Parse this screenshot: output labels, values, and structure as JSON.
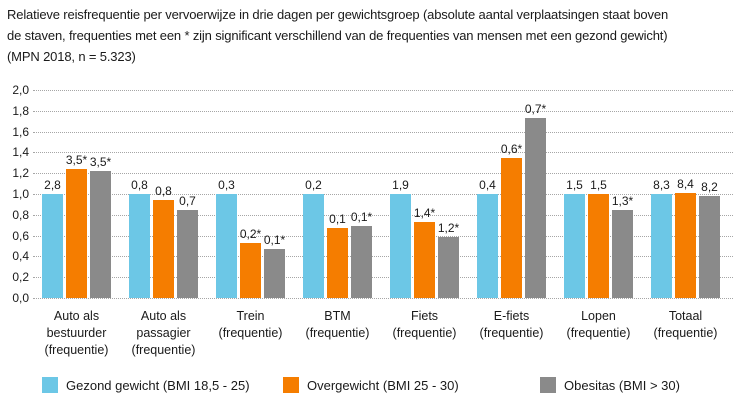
{
  "title_lines": [
    "Relatieve reisfrequentie per vervoerwijze in drie dagen per gewichtsgroep (absolute aantal verplaatsingen staat boven",
    "de staven, frequenties met een * zijn significant verschillend van de frequenties van mensen met een gezond gewicht)",
    "(MPN 2018, n = 5.323)"
  ],
  "legend": [
    {
      "label": "Gezond gewicht (BMI 18,5 - 25)",
      "color": "#6CC7E6"
    },
    {
      "label": "Overgewicht (BMI 25 - 30)",
      "color": "#F57D00"
    },
    {
      "label": "Obesitas (BMI > 30)",
      "color": "#8A8A8A"
    }
  ],
  "colors": {
    "text": "#1a1a1a",
    "gridline": "#a6a6a6",
    "background": "#ffffff"
  },
  "chart_data": {
    "type": "bar",
    "title": "Relatieve reisfrequentie per vervoerwijze in drie dagen per gewichtsgroep (absolute aantal verplaatsingen staat boven de staven, frequenties met een * zijn significant verschillend van de frequenties van mensen met een gezond gewicht) (MPN 2018, n = 5.323)",
    "xlabel": "",
    "ylabel": "",
    "ylim": [
      0,
      2.0
    ],
    "ytick_labels_bottom_to_top": [
      "0,0",
      "0,2",
      "0,4",
      "0,6",
      "0,8",
      "1,0",
      "1,2",
      "1,4",
      "1,6",
      "1,8",
      "2,0"
    ],
    "grid": "horizontal-dotted",
    "legend_position": "bottom",
    "categories": [
      "Auto als bestuurder (frequentie)",
      "Auto als passagier (frequentie)",
      "Trein (frequentie)",
      "BTM (frequentie)",
      "Fiets (frequentie)",
      "E-fiets (frequentie)",
      "Lopen (frequentie)",
      "Totaal (frequentie)"
    ],
    "category_label_lines": [
      [
        "Auto als",
        "bestuurder",
        "(frequentie)"
      ],
      [
        "Auto als",
        "passagier",
        "(frequentie)"
      ],
      [
        "Trein",
        "(frequentie)"
      ],
      [
        "BTM",
        "(frequentie)"
      ],
      [
        "Fiets",
        "(frequentie)"
      ],
      [
        "E-fiets",
        "(frequentie)"
      ],
      [
        "Lopen",
        "(frequentie)"
      ],
      [
        "Totaal",
        "(frequentie)"
      ]
    ],
    "series": [
      {
        "name": "Gezond gewicht (BMI 18,5 - 25)",
        "color": "#6CC7E6",
        "values": [
          1.0,
          1.0,
          1.0,
          1.0,
          1.0,
          1.0,
          1.0,
          1.0
        ],
        "bar_labels": [
          "2,8",
          "0,8",
          "0,3",
          "0,2",
          "1,9",
          "0,4",
          "1,5",
          "8,3"
        ]
      },
      {
        "name": "Overgewicht (BMI 25 - 30)",
        "color": "#F57D00",
        "values": [
          1.24,
          0.94,
          0.53,
          0.67,
          0.73,
          1.35,
          1.0,
          1.01
        ],
        "bar_labels": [
          "3,5*",
          "0,8",
          "0,2*",
          "0,1",
          "1,4*",
          "0,6*",
          "1,5",
          "8,4"
        ]
      },
      {
        "name": "Obesitas (BMI > 30)",
        "color": "#8A8A8A",
        "values": [
          1.22,
          0.85,
          0.47,
          0.69,
          0.59,
          1.73,
          0.85,
          0.98
        ],
        "bar_labels": [
          "3,5*",
          "0,7",
          "0,1*",
          "0,1*",
          "1,2*",
          "0,7*",
          "1,3*",
          "8,2"
        ]
      }
    ]
  }
}
